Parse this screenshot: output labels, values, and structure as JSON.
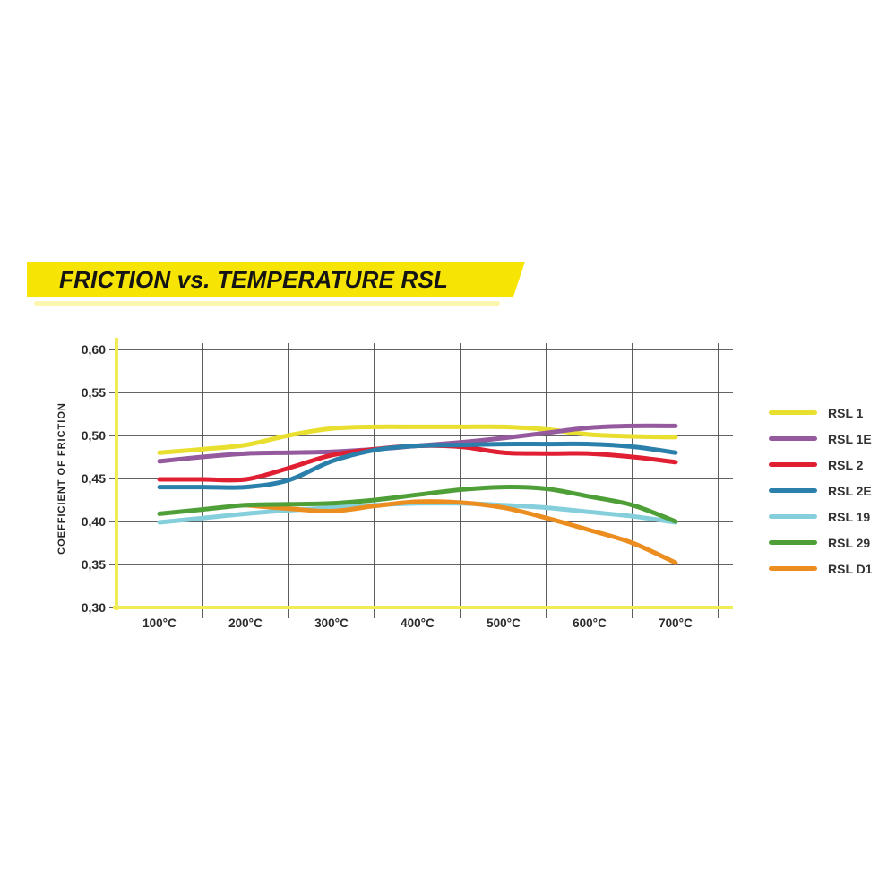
{
  "banner": {
    "title": "FRICTION vs. TEMPERATURE RSL",
    "background": "#f6e404",
    "text_color": "#141414"
  },
  "chart_data": {
    "type": "line",
    "title": "FRICTION vs. TEMPERATURE RSL",
    "xlabel": "",
    "ylabel": "COEFFICIENT OF FRICTION",
    "x_unit": "°C",
    "xticks": [
      "100°C",
      "200°C",
      "300°C",
      "400°C",
      "500°C",
      "600°C",
      "700°C"
    ],
    "yticks": [
      "0,60",
      "0,55",
      "0,50",
      "0,45",
      "0,40",
      "0,35",
      "0,30"
    ],
    "ytick_values": [
      0.6,
      0.55,
      0.5,
      0.45,
      0.4,
      0.35,
      0.3
    ],
    "xlim": [
      100,
      700
    ],
    "ylim": [
      0.3,
      0.6
    ],
    "grid": true,
    "grid_color": "#4c4c4c",
    "axis_color": "#f0ec55",
    "tick_color": "#2b2b2b",
    "legend_position": "right",
    "series": [
      {
        "name": "RSL 1",
        "color": "#e9df2e",
        "x": [
          100,
          150,
          200,
          250,
          300,
          350,
          400,
          450,
          500,
          550,
          600,
          650,
          700
        ],
        "values": [
          0.48,
          0.484,
          0.489,
          0.5,
          0.508,
          0.51,
          0.51,
          0.51,
          0.51,
          0.507,
          0.501,
          0.499,
          0.498
        ]
      },
      {
        "name": "RSL 1E",
        "color": "#95599d",
        "x": [
          100,
          150,
          200,
          250,
          300,
          350,
          400,
          450,
          500,
          550,
          600,
          650,
          700
        ],
        "values": [
          0.47,
          0.475,
          0.479,
          0.48,
          0.481,
          0.484,
          0.488,
          0.492,
          0.497,
          0.503,
          0.509,
          0.511,
          0.511
        ]
      },
      {
        "name": "RSL 2",
        "color": "#e01f33",
        "x": [
          100,
          150,
          200,
          250,
          300,
          350,
          400,
          450,
          500,
          550,
          600,
          650,
          700
        ],
        "values": [
          0.449,
          0.449,
          0.449,
          0.462,
          0.477,
          0.484,
          0.488,
          0.487,
          0.48,
          0.479,
          0.479,
          0.475,
          0.469
        ]
      },
      {
        "name": "RSL 2E",
        "color": "#2a7fab",
        "x": [
          100,
          150,
          200,
          250,
          300,
          350,
          400,
          450,
          500,
          550,
          600,
          650,
          700
        ],
        "values": [
          0.44,
          0.44,
          0.44,
          0.448,
          0.47,
          0.483,
          0.488,
          0.489,
          0.49,
          0.49,
          0.49,
          0.487,
          0.48
        ]
      },
      {
        "name": "RSL 19",
        "color": "#84cfdb",
        "x": [
          100,
          150,
          200,
          250,
          300,
          350,
          400,
          450,
          500,
          550,
          600,
          650,
          700
        ],
        "values": [
          0.399,
          0.404,
          0.409,
          0.413,
          0.416,
          0.419,
          0.421,
          0.421,
          0.419,
          0.416,
          0.411,
          0.406,
          0.399
        ]
      },
      {
        "name": "RSL 29",
        "color": "#4f9f38",
        "x": [
          100,
          150,
          200,
          250,
          300,
          350,
          400,
          450,
          500,
          550,
          600,
          650,
          700
        ],
        "values": [
          0.409,
          0.414,
          0.419,
          0.42,
          0.421,
          0.425,
          0.431,
          0.437,
          0.44,
          0.438,
          0.429,
          0.419,
          0.4
        ]
      },
      {
        "name": "RSL D1",
        "color": "#ec8d20",
        "x": [
          200,
          250,
          300,
          350,
          400,
          450,
          500,
          550,
          600,
          650,
          700
        ],
        "values": [
          0.419,
          0.415,
          0.412,
          0.418,
          0.423,
          0.422,
          0.416,
          0.404,
          0.39,
          0.375,
          0.352
        ]
      }
    ]
  }
}
